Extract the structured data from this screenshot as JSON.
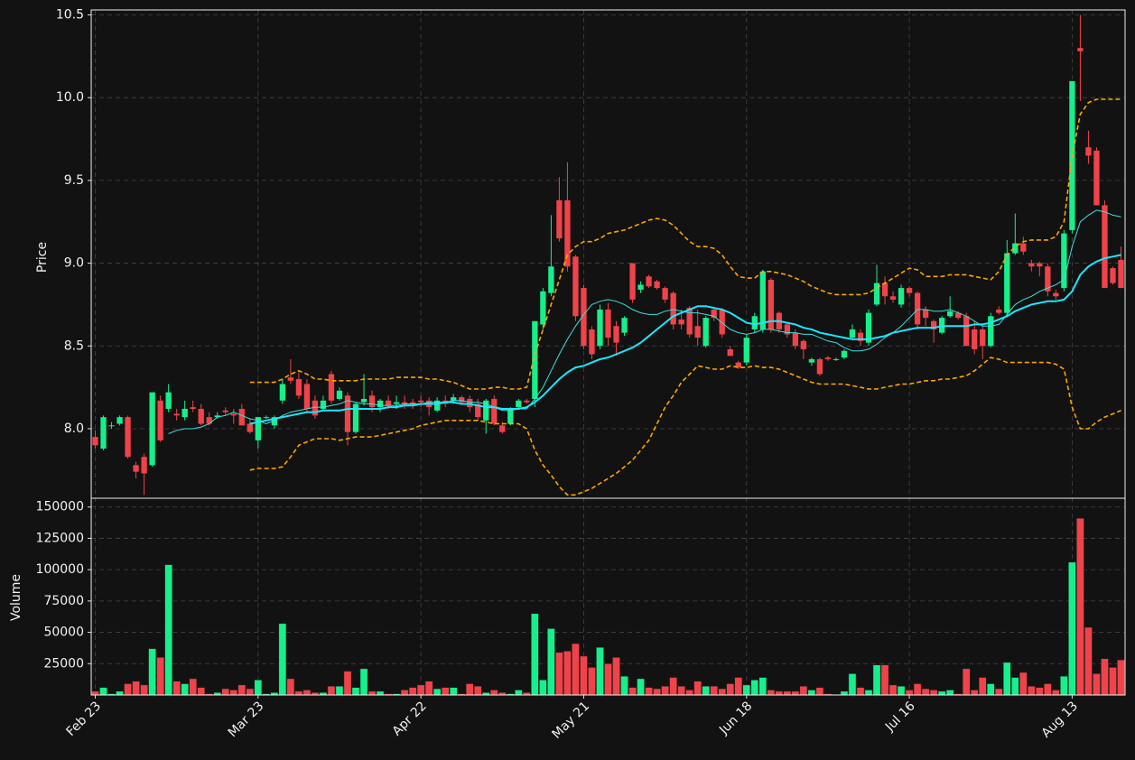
{
  "chart_data": {
    "type": "candlestick",
    "categories": [
      "Feb 23",
      null,
      null,
      null,
      null,
      null,
      null,
      null,
      null,
      null,
      null,
      null,
      null,
      null,
      null,
      null,
      null,
      null,
      null,
      null,
      "Mar 23",
      null,
      null,
      null,
      null,
      null,
      null,
      null,
      null,
      null,
      null,
      null,
      null,
      null,
      null,
      null,
      null,
      null,
      null,
      null,
      "Apr 22",
      null,
      null,
      null,
      null,
      null,
      null,
      null,
      null,
      null,
      null,
      null,
      null,
      null,
      null,
      null,
      null,
      null,
      null,
      null,
      "May 21",
      null,
      null,
      null,
      null,
      null,
      null,
      null,
      null,
      null,
      null,
      null,
      null,
      null,
      null,
      null,
      null,
      null,
      null,
      null,
      "Jun 18",
      null,
      null,
      null,
      null,
      null,
      null,
      null,
      null,
      null,
      null,
      null,
      null,
      null,
      null,
      null,
      null,
      null,
      null,
      null,
      "Jul 16",
      null,
      null,
      null,
      null,
      null,
      null,
      null,
      null,
      null,
      null,
      null,
      null,
      null,
      null,
      null,
      null,
      null,
      null,
      null,
      "Aug 13",
      null,
      null,
      null,
      null,
      null,
      null
    ],
    "open": [
      7.95,
      7.88,
      8.02,
      8.03,
      8.07,
      7.78,
      7.83,
      7.78,
      8.17,
      8.12,
      8.09,
      8.07,
      8.13,
      8.12,
      8.07,
      8.07,
      8.11,
      8.09,
      8.12,
      8.03,
      7.93,
      8.07,
      8.02,
      8.17,
      8.31,
      8.3,
      8.27,
      8.17,
      8.12,
      8.33,
      8.18,
      8.2,
      7.98,
      8.16,
      8.2,
      8.13,
      8.17,
      8.15,
      8.16,
      8.16,
      8.17,
      8.17,
      8.11,
      8.17,
      8.17,
      8.19,
      8.18,
      8.15,
      8.05,
      8.18,
      8.02,
      8.03,
      8.13,
      8.17,
      8.18,
      8.63,
      8.82,
      9.38,
      9.38,
      9.04,
      8.85,
      8.6,
      8.5,
      8.72,
      8.62,
      8.58,
      9.0,
      8.84,
      8.92,
      8.89,
      8.85,
      8.82,
      8.66,
      8.73,
      8.62,
      8.5,
      8.72,
      8.72,
      8.48,
      8.4,
      8.4,
      8.6,
      8.6,
      8.9,
      8.7,
      8.63,
      8.58,
      8.53,
      8.4,
      8.42,
      8.43,
      8.42,
      8.43,
      8.55,
      8.58,
      8.52,
      8.75,
      8.88,
      8.8,
      8.75,
      8.85,
      8.82,
      8.72,
      8.65,
      8.58,
      8.68,
      8.7,
      8.68,
      8.6,
      8.6,
      8.5,
      8.72,
      8.7,
      9.06,
      9.12,
      9.0,
      9.0,
      8.98,
      8.82,
      8.85,
      9.2,
      10.3,
      9.7,
      9.68,
      9.35,
      8.97,
      9.02
    ],
    "high": [
      7.99,
      8.08,
      8.04,
      8.08,
      8.08,
      7.8,
      7.85,
      8.22,
      8.2,
      8.27,
      8.12,
      8.17,
      8.17,
      8.15,
      8.1,
      8.1,
      8.13,
      8.12,
      8.15,
      8.06,
      8.07,
      8.08,
      8.08,
      8.3,
      8.42,
      8.34,
      8.3,
      8.2,
      8.2,
      8.35,
      8.25,
      8.22,
      8.16,
      8.33,
      8.23,
      8.18,
      8.2,
      8.2,
      8.2,
      8.18,
      8.2,
      8.19,
      8.19,
      8.2,
      8.21,
      8.2,
      8.2,
      8.18,
      8.18,
      8.2,
      8.04,
      8.13,
      8.18,
      8.18,
      8.65,
      8.85,
      9.29,
      9.52,
      9.61,
      9.05,
      8.87,
      8.62,
      8.75,
      8.76,
      8.65,
      8.68,
      9.0,
      8.89,
      8.93,
      8.9,
      8.86,
      8.83,
      8.72,
      8.74,
      8.72,
      8.68,
      8.73,
      8.73,
      8.5,
      8.41,
      8.57,
      8.7,
      8.96,
      8.91,
      8.71,
      8.64,
      8.6,
      8.54,
      8.43,
      8.43,
      8.44,
      8.43,
      8.48,
      8.63,
      8.6,
      8.72,
      8.99,
      8.92,
      8.83,
      8.87,
      8.86,
      8.83,
      8.74,
      8.66,
      8.68,
      8.8,
      8.71,
      8.7,
      8.65,
      8.62,
      8.7,
      8.74,
      9.14,
      9.3,
      9.16,
      9.02,
      9.01,
      9.0,
      8.84,
      9.2,
      10.1,
      10.5,
      9.8,
      9.7,
      9.38,
      8.98,
      9.1
    ],
    "low": [
      7.88,
      7.87,
      8.0,
      8.02,
      7.82,
      7.7,
      7.6,
      7.77,
      7.92,
      8.1,
      8.05,
      8.05,
      8.1,
      8.02,
      8.02,
      8.06,
      8.08,
      8.03,
      8.02,
      7.97,
      7.88,
      8.06,
      8.0,
      8.15,
      8.27,
      8.18,
      8.1,
      8.06,
      8.11,
      8.15,
      8.17,
      7.9,
      7.97,
      8.14,
      8.1,
      8.1,
      8.12,
      8.12,
      8.12,
      8.12,
      8.13,
      8.08,
      8.1,
      8.13,
      8.15,
      8.15,
      8.1,
      8.05,
      7.97,
      8.02,
      7.97,
      8.02,
      8.12,
      8.15,
      8.13,
      8.6,
      8.8,
      9.13,
      8.95,
      8.65,
      8.48,
      8.42,
      8.48,
      8.5,
      8.44,
      8.56,
      8.76,
      8.82,
      8.85,
      8.84,
      8.76,
      8.6,
      8.6,
      8.55,
      8.5,
      8.49,
      8.65,
      8.55,
      8.44,
      8.36,
      8.38,
      8.58,
      8.58,
      8.58,
      8.58,
      8.55,
      8.48,
      8.42,
      8.38,
      8.32,
      8.41,
      8.41,
      8.42,
      8.54,
      8.5,
      8.5,
      8.74,
      8.75,
      8.76,
      8.73,
      8.8,
      8.6,
      8.62,
      8.52,
      8.57,
      8.67,
      8.66,
      8.5,
      8.45,
      8.42,
      8.49,
      8.69,
      8.68,
      9.05,
      9.05,
      8.95,
      8.92,
      8.8,
      8.78,
      8.83,
      9.18,
      9.98,
      9.6,
      9.35,
      8.85,
      8.87,
      8.85
    ],
    "close": [
      7.9,
      8.07,
      8.02,
      8.07,
      7.83,
      7.74,
      7.73,
      8.22,
      7.93,
      8.22,
      8.08,
      8.12,
      8.12,
      8.03,
      8.03,
      8.08,
      8.1,
      8.08,
      8.02,
      7.98,
      8.07,
      8.07,
      8.07,
      8.27,
      8.29,
      8.2,
      8.12,
      8.08,
      8.17,
      8.17,
      8.23,
      7.98,
      8.15,
      8.18,
      8.13,
      8.17,
      8.14,
      8.16,
      8.15,
      8.15,
      8.16,
      8.13,
      8.17,
      8.15,
      8.19,
      8.16,
      8.13,
      8.07,
      8.17,
      8.03,
      7.98,
      8.12,
      8.17,
      8.16,
      8.65,
      8.83,
      8.98,
      9.15,
      8.98,
      8.68,
      8.5,
      8.45,
      8.72,
      8.55,
      8.52,
      8.67,
      8.78,
      8.87,
      8.86,
      8.85,
      8.78,
      8.63,
      8.63,
      8.57,
      8.55,
      8.67,
      8.67,
      8.57,
      8.44,
      8.37,
      8.55,
      8.68,
      8.95,
      8.6,
      8.6,
      8.57,
      8.5,
      8.48,
      8.42,
      8.33,
      8.42,
      8.42,
      8.47,
      8.6,
      8.53,
      8.7,
      8.88,
      8.8,
      8.78,
      8.85,
      8.82,
      8.63,
      8.67,
      8.6,
      8.67,
      8.71,
      8.67,
      8.5,
      8.48,
      8.5,
      8.68,
      8.7,
      9.06,
      9.12,
      9.07,
      8.98,
      8.98,
      8.83,
      8.8,
      9.18,
      10.1,
      10.28,
      9.65,
      9.35,
      8.85,
      8.88,
      8.85
    ],
    "up_color": "#16f08c",
    "down_color": "#f04349",
    "ylabel": "Price",
    "ylim": [
      7.58,
      10.53
    ],
    "yticks": [
      {
        "value": 8.0,
        "label": "8.0"
      },
      {
        "value": 8.5,
        "label": "8.5"
      },
      {
        "value": 9.0,
        "label": "9.0"
      },
      {
        "value": 9.5,
        "label": "9.5"
      },
      {
        "value": 10.0,
        "label": "10.0"
      },
      {
        "value": 10.5,
        "label": "10.5"
      }
    ],
    "grid": true,
    "overlays": [
      {
        "color": "#40dede",
        "width": 1,
        "dashed": false,
        "values": [
          null,
          null,
          null,
          null,
          null,
          null,
          null,
          null,
          null,
          7.97,
          7.99,
          8.0,
          8.0,
          8.01,
          8.03,
          8.07,
          8.08,
          8.1,
          8.08,
          8.06,
          8.05,
          8.03,
          8.05,
          8.08,
          8.1,
          8.11,
          8.12,
          8.13,
          8.13,
          8.14,
          8.15,
          8.17,
          8.16,
          8.15,
          8.15,
          8.14,
          8.14,
          8.14,
          8.15,
          8.15,
          8.15,
          8.16,
          8.16,
          8.16,
          8.17,
          8.17,
          8.16,
          8.16,
          8.15,
          8.13,
          8.11,
          8.11,
          8.12,
          8.12,
          8.18,
          8.25,
          8.35,
          8.45,
          8.54,
          8.62,
          8.69,
          8.75,
          8.77,
          8.78,
          8.77,
          8.75,
          8.72,
          8.7,
          8.69,
          8.69,
          8.71,
          8.72,
          8.71,
          8.7,
          8.7,
          8.69,
          8.68,
          8.64,
          8.6,
          8.58,
          8.57,
          8.58,
          8.6,
          8.6,
          8.59,
          8.58,
          8.58,
          8.57,
          8.57,
          8.55,
          8.53,
          8.52,
          8.49,
          8.47,
          8.47,
          8.48,
          8.51,
          8.55,
          8.58,
          8.62,
          8.67,
          8.72,
          8.72,
          8.71,
          8.71,
          8.72,
          8.7,
          8.68,
          8.65,
          8.62,
          8.62,
          8.63,
          8.69,
          8.75,
          8.78,
          8.8,
          8.83,
          8.85,
          8.87,
          8.9,
          9.1,
          9.25,
          9.29,
          9.32,
          9.31,
          9.29,
          9.28
        ]
      },
      {
        "color": "#1ee6ff",
        "width": 2,
        "dashed": false,
        "values": [
          null,
          null,
          null,
          null,
          null,
          null,
          null,
          null,
          null,
          null,
          null,
          null,
          null,
          null,
          null,
          null,
          null,
          null,
          null,
          8.03,
          8.04,
          8.05,
          8.06,
          8.07,
          8.08,
          8.09,
          8.1,
          8.1,
          8.11,
          8.11,
          8.11,
          8.12,
          8.12,
          8.12,
          8.12,
          8.12,
          8.13,
          8.13,
          8.14,
          8.14,
          8.15,
          8.15,
          8.15,
          8.16,
          8.16,
          8.15,
          8.15,
          8.14,
          8.13,
          8.13,
          8.12,
          8.12,
          8.12,
          8.13,
          8.16,
          8.2,
          8.25,
          8.3,
          8.34,
          8.37,
          8.38,
          8.4,
          8.42,
          8.43,
          8.45,
          8.47,
          8.49,
          8.52,
          8.56,
          8.6,
          8.64,
          8.68,
          8.7,
          8.72,
          8.74,
          8.74,
          8.73,
          8.72,
          8.7,
          8.67,
          8.64,
          8.63,
          8.64,
          8.65,
          8.65,
          8.64,
          8.63,
          8.61,
          8.6,
          8.58,
          8.57,
          8.56,
          8.55,
          8.54,
          8.54,
          8.54,
          8.55,
          8.56,
          8.58,
          8.59,
          8.6,
          8.61,
          8.61,
          8.61,
          8.62,
          8.62,
          8.62,
          8.62,
          8.63,
          8.63,
          8.64,
          8.66,
          8.68,
          8.71,
          8.73,
          8.75,
          8.76,
          8.77,
          8.77,
          8.78,
          8.83,
          8.93,
          8.98,
          9.01,
          9.03,
          9.04,
          9.05
        ]
      },
      {
        "color": "#ffa500",
        "width": 1.6,
        "dashed": true,
        "values": [
          null,
          null,
          null,
          null,
          null,
          null,
          null,
          null,
          null,
          null,
          null,
          null,
          null,
          null,
          null,
          null,
          null,
          null,
          null,
          8.28,
          8.28,
          8.28,
          8.28,
          8.3,
          8.33,
          8.35,
          8.33,
          8.3,
          8.3,
          8.29,
          8.29,
          8.29,
          8.29,
          8.3,
          8.3,
          8.3,
          8.3,
          8.31,
          8.31,
          8.31,
          8.31,
          8.3,
          8.3,
          8.29,
          8.28,
          8.26,
          8.24,
          8.24,
          8.24,
          8.25,
          8.25,
          8.24,
          8.24,
          8.25,
          8.45,
          8.6,
          8.75,
          8.9,
          9.05,
          9.1,
          9.13,
          9.13,
          9.15,
          9.18,
          9.19,
          9.2,
          9.22,
          9.24,
          9.26,
          9.27,
          9.26,
          9.23,
          9.18,
          9.13,
          9.1,
          9.1,
          9.09,
          9.05,
          8.98,
          8.92,
          8.91,
          8.91,
          8.95,
          8.95,
          8.94,
          8.93,
          8.91,
          8.89,
          8.86,
          8.84,
          8.82,
          8.81,
          8.81,
          8.81,
          8.81,
          8.82,
          8.85,
          8.88,
          8.91,
          8.94,
          8.97,
          8.96,
          8.92,
          8.92,
          8.92,
          8.93,
          8.93,
          8.93,
          8.92,
          8.91,
          8.9,
          8.95,
          9.05,
          9.1,
          9.13,
          9.14,
          9.14,
          9.14,
          9.16,
          9.25,
          9.65,
          9.9,
          9.97,
          9.99,
          9.99,
          9.99,
          9.99
        ]
      },
      {
        "color": "#ffa500",
        "width": 1.6,
        "dashed": true,
        "values": [
          null,
          null,
          null,
          null,
          null,
          null,
          null,
          null,
          null,
          null,
          null,
          null,
          null,
          null,
          null,
          null,
          null,
          null,
          null,
          7.75,
          7.76,
          7.76,
          7.76,
          7.77,
          7.83,
          7.9,
          7.92,
          7.94,
          7.94,
          7.94,
          7.93,
          7.94,
          7.95,
          7.95,
          7.95,
          7.96,
          7.97,
          7.98,
          7.99,
          8.0,
          8.02,
          8.03,
          8.04,
          8.05,
          8.05,
          8.05,
          8.05,
          8.05,
          8.04,
          8.03,
          8.03,
          8.03,
          8.03,
          8.0,
          7.87,
          7.78,
          7.72,
          7.65,
          7.6,
          7.6,
          7.62,
          7.64,
          7.67,
          7.7,
          7.73,
          7.77,
          7.81,
          7.87,
          7.93,
          8.03,
          8.13,
          8.2,
          8.28,
          8.33,
          8.38,
          8.37,
          8.36,
          8.36,
          8.38,
          8.37,
          8.37,
          8.38,
          8.37,
          8.37,
          8.36,
          8.34,
          8.32,
          8.3,
          8.28,
          8.27,
          8.27,
          8.27,
          8.27,
          8.26,
          8.25,
          8.24,
          8.24,
          8.25,
          8.26,
          8.27,
          8.27,
          8.28,
          8.29,
          8.29,
          8.3,
          8.3,
          8.31,
          8.32,
          8.35,
          8.39,
          8.43,
          8.42,
          8.4,
          8.4,
          8.4,
          8.4,
          8.4,
          8.4,
          8.39,
          8.36,
          8.13,
          8.0,
          8.0,
          8.04,
          8.07,
          8.09,
          8.11
        ]
      }
    ],
    "volume": {
      "ylabel": "Volume",
      "ylim": [
        0,
        157000
      ],
      "yticks": [
        25000,
        50000,
        75000,
        100000,
        125000,
        150000
      ],
      "values": [
        3000,
        6000,
        1000,
        3000,
        9000,
        11000,
        8000,
        37000,
        30000,
        104000,
        11000,
        9000,
        13000,
        6000,
        1000,
        2000,
        5000,
        4000,
        8000,
        5000,
        12000,
        1000,
        2000,
        57000,
        13000,
        3000,
        4000,
        2000,
        2000,
        7000,
        7000,
        19000,
        6000,
        21000,
        3000,
        3000,
        1000,
        1000,
        4000,
        6000,
        8000,
        11000,
        5000,
        6000,
        6000,
        1000,
        9000,
        7000,
        2000,
        4000,
        2000,
        1000,
        4000,
        2000,
        65000,
        12000,
        53000,
        34000,
        35000,
        41000,
        31000,
        22000,
        38000,
        25000,
        30000,
        15000,
        6000,
        13000,
        6000,
        5000,
        7000,
        14000,
        7000,
        4000,
        11000,
        7000,
        7000,
        5000,
        9000,
        14000,
        8000,
        12000,
        14000,
        4000,
        3000,
        3000,
        3000,
        7000,
        4000,
        6000,
        1000,
        500,
        3000,
        17000,
        6000,
        4000,
        24000,
        24000,
        8000,
        7000,
        4000,
        9000,
        5000,
        4000,
        3000,
        4000,
        1000,
        21000,
        4000,
        14000,
        9000,
        5000,
        26000,
        14000,
        18000,
        7000,
        6000,
        9000,
        4000,
        15000,
        106000,
        141000,
        54000,
        17000,
        29000,
        22000,
        28000
      ]
    }
  }
}
